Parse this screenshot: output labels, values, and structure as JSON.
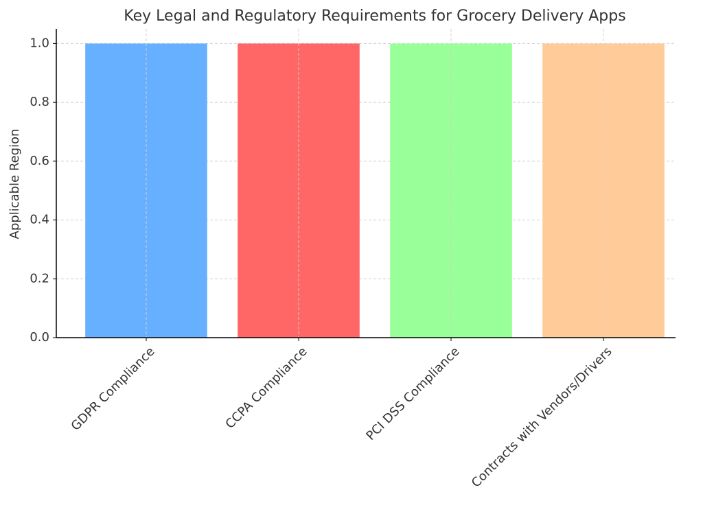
{
  "chart_data": {
    "type": "bar",
    "title": "Key Legal and Regulatory Requirements for Grocery Delivery Apps",
    "y_label": "Applicable Region",
    "categories": [
      "GDPR Compliance",
      "CCPA Compliance",
      "PCI DSS Compliance",
      "Contracts with Vendors/Drivers"
    ],
    "values": [
      1,
      1,
      1,
      1
    ],
    "colors": [
      "#66b0ff",
      "#ff6666",
      "#99ff99",
      "#ffcc99"
    ],
    "ylim": [
      0,
      1.05
    ],
    "yticks": [
      {
        "value": 0,
        "label": "0.0"
      },
      0.2,
      0.4,
      0.6,
      0.8,
      {
        "value": 1,
        "label": "1.0"
      }
    ],
    "grid": true
  }
}
